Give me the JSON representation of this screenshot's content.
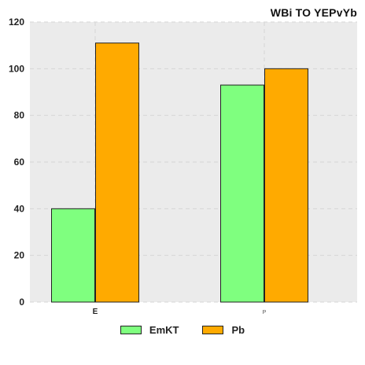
{
  "chart_data": {
    "type": "bar",
    "title": "WBi TO YEPvYb",
    "xlabel": "",
    "ylabel": "",
    "categories": [
      "E",
      "P"
    ],
    "series": [
      {
        "name": "EmKT",
        "values": [
          40,
          93
        ],
        "color": "#7fff7f"
      },
      {
        "name": "Pb",
        "values": [
          111,
          100
        ],
        "color": "#ffaa00"
      }
    ],
    "ylim": [
      0,
      120
    ],
    "yticks": [
      0,
      20,
      40,
      60,
      80,
      100,
      120
    ],
    "grid": true,
    "legend_position": "bottom-center"
  }
}
